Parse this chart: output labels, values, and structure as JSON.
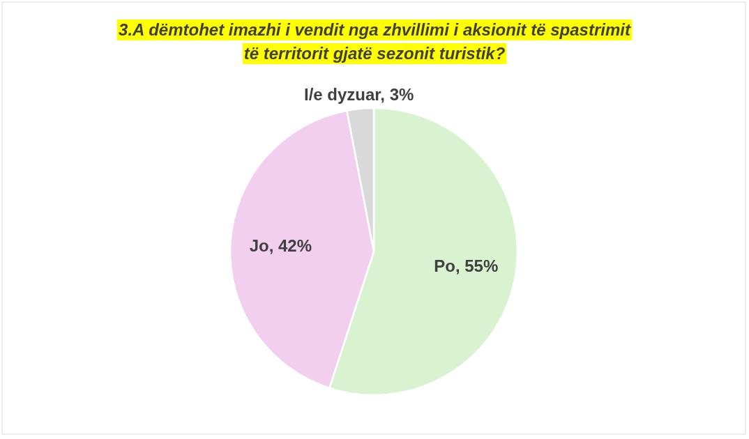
{
  "chart_data": {
    "type": "pie",
    "title": "3.A dëmtohet imazhi i vendit nga zhvillimi i aksionit të spastrimit të territorit gjatë sezonit turistik?",
    "categories": [
      "Po",
      "Jo",
      "I/e dyzuar"
    ],
    "values": [
      55,
      42,
      3
    ],
    "colors": [
      "#d9f2d0",
      "#f2cfee",
      "#d9d9d9"
    ],
    "value_labels": [
      "55%",
      "42%",
      "3%"
    ]
  }
}
